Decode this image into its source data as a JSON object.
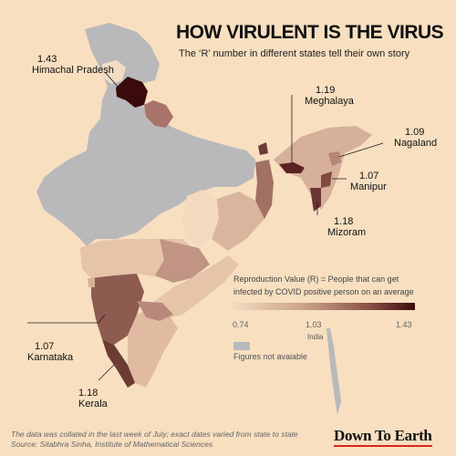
{
  "title": "HOW VIRULENT IS THE VIRUS",
  "subtitle": "The ‘R’ number in different states tell their own story",
  "labels": [
    {
      "value": "1.43",
      "state": "Himachal Pradesh"
    },
    {
      "value": "1.19",
      "state": "Meghalaya"
    },
    {
      "value": "1.09",
      "state": "Nagaland"
    },
    {
      "value": "1.07",
      "state": "Manipur"
    },
    {
      "value": "1.18",
      "state": "Mizoram"
    },
    {
      "value": "1.07",
      "state": "Karnataka"
    },
    {
      "value": "1.18",
      "state": "Kerala"
    }
  ],
  "legend": {
    "title": "Reproduction Value (R) = People that can get infected by COVID positive person on an average",
    "min": "0.74",
    "mid": "1.03",
    "max": "1.43",
    "no_data": "Figures not avaiable"
  },
  "country_label": "India",
  "footnote": {
    "line1": "The data was collated in the last week of July; exact dates varied from state to state",
    "line2": "Source: Sitabhra Sinha, Institute of Mathematical Sciences"
  },
  "brand": "Down To Earth",
  "colors": {
    "background": "#f7dfc0",
    "no_data": "#b9b9bb",
    "low": "#f5dcc0",
    "high": "#3b0b0b"
  }
}
